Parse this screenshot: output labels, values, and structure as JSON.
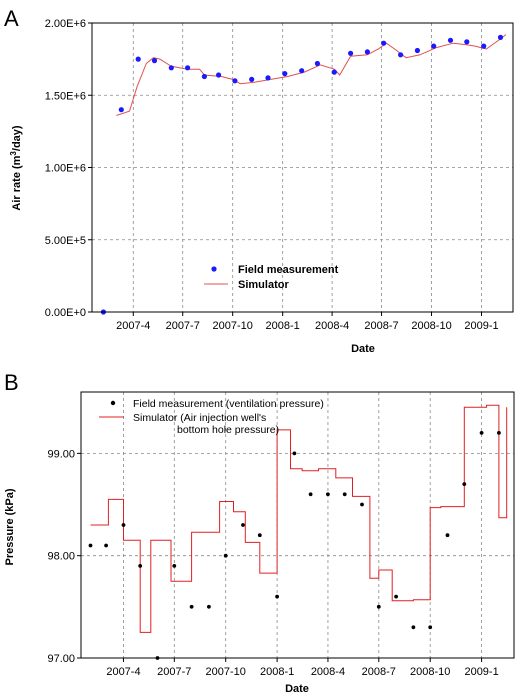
{
  "chart_data": [
    {
      "panel": "A",
      "type": "line",
      "xlabel": "Date",
      "ylabel": "Air rate  (m³/day)",
      "ylabel_parts": {
        "pre": "Air rate  (m",
        "sup": "3",
        "post": "/day)"
      },
      "x_ticks": [
        "2007-4",
        "2007-7",
        "2007-10",
        "2008-1",
        "2008-4",
        "2008-7",
        "2008-10",
        "2009-1"
      ],
      "y_ticks": [
        "0.00E+0",
        "5.00E+5",
        "1.00E+6",
        "1.50E+6",
        "2.00E+6"
      ],
      "ylim": [
        0,
        2000000
      ],
      "xlim": [
        "2007-01-15",
        "2009-02-28"
      ],
      "grid": true,
      "legend_position": "bottom-center",
      "series": [
        {
          "name": "Field measurement",
          "type": "scatter",
          "color": "#1a1aff",
          "x": [
            "2007-02-05",
            "2007-03-10",
            "2007-04-10",
            "2007-05-10",
            "2007-06-10",
            "2007-07-10",
            "2007-08-10",
            "2007-09-05",
            "2007-10-05",
            "2007-11-05",
            "2007-12-05",
            "2008-01-05",
            "2008-02-05",
            "2008-03-05",
            "2008-04-05",
            "2008-05-05",
            "2008-06-05",
            "2008-07-05",
            "2008-08-05",
            "2008-09-05",
            "2008-10-05",
            "2008-11-05",
            "2008-12-05",
            "2009-01-05",
            "2009-02-05"
          ],
          "y": [
            0,
            1400000,
            1750000,
            1740000,
            1690000,
            1690000,
            1630000,
            1640000,
            1600000,
            1610000,
            1620000,
            1650000,
            1670000,
            1720000,
            1660000,
            1790000,
            1800000,
            1860000,
            1780000,
            1810000,
            1840000,
            1880000,
            1870000,
            1840000,
            1900000
          ]
        },
        {
          "name": "Simulator",
          "type": "line",
          "color": "#e05050",
          "x": [
            "2007-03-01",
            "2007-03-25",
            "2007-04-08",
            "2007-04-25",
            "2007-05-08",
            "2007-05-20",
            "2007-06-10",
            "2007-07-10",
            "2007-08-01",
            "2007-08-10",
            "2007-09-10",
            "2007-10-01",
            "2007-10-15",
            "2007-11-10",
            "2007-12-10",
            "2008-01-10",
            "2008-02-10",
            "2008-03-10",
            "2008-04-05",
            "2008-04-15",
            "2008-05-05",
            "2008-06-05",
            "2008-06-25",
            "2008-07-10",
            "2008-07-25",
            "2008-08-15",
            "2008-09-10",
            "2008-10-10",
            "2008-11-10",
            "2008-12-05",
            "2008-12-20",
            "2009-01-10",
            "2009-02-05",
            "2009-02-15"
          ],
          "y": [
            1360000,
            1390000,
            1560000,
            1720000,
            1760000,
            1750000,
            1700000,
            1680000,
            1680000,
            1640000,
            1630000,
            1610000,
            1580000,
            1590000,
            1610000,
            1630000,
            1660000,
            1710000,
            1680000,
            1640000,
            1770000,
            1780000,
            1820000,
            1860000,
            1820000,
            1760000,
            1780000,
            1830000,
            1860000,
            1850000,
            1840000,
            1820000,
            1890000,
            1920000
          ]
        }
      ]
    },
    {
      "panel": "B",
      "type": "line",
      "xlabel": "Date",
      "ylabel": "Pressure (kPa)",
      "x_ticks": [
        "2007-4",
        "2007-7",
        "2007-10",
        "2008-1",
        "2008-4",
        "2008-7",
        "2008-10",
        "2009-1"
      ],
      "y_ticks": [
        "97.00",
        "98.00",
        "99.00"
      ],
      "ylim": [
        97.0,
        99.6
      ],
      "xlim": [
        "2007-01-15",
        "2009-02-28"
      ],
      "grid": true,
      "legend_position": "top-left",
      "series": [
        {
          "name": "Field measurement (ventilation pressure)",
          "type": "scatter",
          "color": "#000000",
          "x": [
            "2007-02-01",
            "2007-03-01",
            "2007-04-01",
            "2007-05-01",
            "2007-06-01",
            "2007-07-01",
            "2007-08-01",
            "2007-09-01",
            "2007-10-01",
            "2007-11-01",
            "2007-12-01",
            "2008-01-01",
            "2008-02-01",
            "2008-03-01",
            "2008-04-01",
            "2008-05-01",
            "2008-06-01",
            "2008-07-01",
            "2008-08-01",
            "2008-09-01",
            "2008-10-01",
            "2008-11-01",
            "2008-12-01",
            "2009-01-01",
            "2009-02-01"
          ],
          "y": [
            98.1,
            98.1,
            98.3,
            97.9,
            97.0,
            97.9,
            97.5,
            97.5,
            98.0,
            98.3,
            98.2,
            97.6,
            99.0,
            98.6,
            98.6,
            98.6,
            98.5,
            97.5,
            97.6,
            97.3,
            97.3,
            98.2,
            98.7,
            99.2,
            99.2
          ]
        },
        {
          "name": "Simulator (Air injection well's bottom hole pressure)",
          "name_lines": [
            "Simulator (Air injection well's",
            "bottom hole pressure)"
          ],
          "type": "line",
          "color": "#e02020",
          "x": [
            "2007-02-01",
            "2007-03-05",
            "2007-03-05",
            "2007-04-01",
            "2007-04-01",
            "2007-05-01",
            "2007-05-01",
            "2007-05-20",
            "2007-05-20",
            "2007-06-25",
            "2007-06-25",
            "2007-08-01",
            "2007-08-01",
            "2007-09-20",
            "2007-09-20",
            "2007-10-15",
            "2007-10-15",
            "2007-11-05",
            "2007-11-05",
            "2007-12-01",
            "2007-12-01",
            "2008-01-01",
            "2008-01-01",
            "2008-01-25",
            "2008-01-25",
            "2008-02-15",
            "2008-02-15",
            "2008-03-15",
            "2008-03-15",
            "2008-04-15",
            "2008-04-15",
            "2008-05-15",
            "2008-05-15",
            "2008-06-15",
            "2008-06-15",
            "2008-07-01",
            "2008-07-01",
            "2008-07-25",
            "2008-07-25",
            "2008-08-20",
            "2008-08-20",
            "2008-09-01",
            "2008-09-01",
            "2008-10-01",
            "2008-10-01",
            "2008-10-20",
            "2008-10-20",
            "2008-12-01",
            "2008-12-01",
            "2009-01-10",
            "2009-01-10",
            "2009-02-01",
            "2009-02-01",
            "2009-02-15",
            "2009-02-15"
          ],
          "y": [
            98.3,
            98.3,
            98.55,
            98.55,
            98.15,
            98.15,
            97.25,
            97.25,
            98.15,
            98.15,
            97.75,
            97.75,
            98.23,
            98.23,
            98.53,
            98.53,
            98.43,
            98.43,
            98.13,
            98.13,
            97.83,
            97.83,
            99.23,
            99.23,
            98.85,
            98.85,
            98.83,
            98.83,
            98.85,
            98.85,
            98.76,
            98.76,
            98.58,
            98.58,
            97.78,
            97.78,
            97.86,
            97.86,
            97.56,
            97.56,
            97.56,
            97.56,
            97.57,
            97.57,
            98.47,
            98.47,
            98.48,
            98.48,
            99.45,
            99.45,
            99.47,
            99.47,
            98.37,
            98.37,
            99.45
          ]
        }
      ]
    }
  ]
}
